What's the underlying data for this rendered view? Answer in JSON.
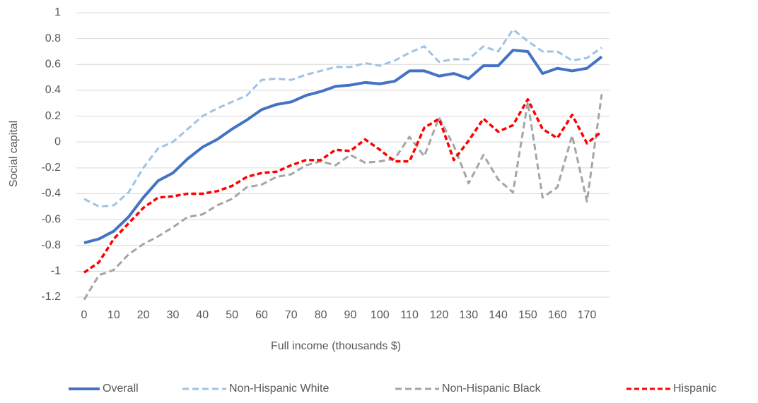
{
  "chart_data": {
    "type": "line",
    "x_label": "Full income (thousands $)",
    "y_label": "Social capital",
    "x": [
      0,
      5,
      10,
      15,
      20,
      25,
      30,
      35,
      40,
      45,
      50,
      55,
      60,
      65,
      70,
      75,
      80,
      85,
      90,
      95,
      100,
      105,
      110,
      115,
      120,
      125,
      130,
      135,
      140,
      145,
      150,
      155,
      160,
      165,
      170,
      175
    ],
    "xlim": [
      0,
      175
    ],
    "xticks": [
      0,
      10,
      20,
      30,
      40,
      50,
      60,
      70,
      80,
      90,
      100,
      110,
      120,
      130,
      140,
      150,
      160,
      170
    ],
    "ylim": [
      -1.2,
      1
    ],
    "yticks": [
      -1.2,
      -1,
      -0.8,
      -0.6,
      -0.4,
      -0.2,
      0,
      0.2,
      0.4,
      0.6,
      0.8,
      1
    ],
    "grid": true,
    "legend": "bottom",
    "series": [
      {
        "name": "Overall",
        "color": "#4472c4",
        "dashed": false,
        "values": [
          -0.78,
          -0.75,
          -0.69,
          -0.58,
          -0.43,
          -0.3,
          -0.24,
          -0.13,
          -0.04,
          0.02,
          0.1,
          0.17,
          0.25,
          0.29,
          0.31,
          0.36,
          0.39,
          0.43,
          0.44,
          0.46,
          0.45,
          0.47,
          0.55,
          0.55,
          0.51,
          0.53,
          0.49,
          0.59,
          0.59,
          0.71,
          0.7,
          0.53,
          0.57,
          0.55,
          0.57,
          0.66
        ]
      },
      {
        "name": "Non-Hispanic White",
        "color": "#9dc3e6",
        "dashed": true,
        "values": [
          -0.44,
          -0.5,
          -0.49,
          -0.39,
          -0.2,
          -0.05,
          0.0,
          0.1,
          0.2,
          0.26,
          0.31,
          0.36,
          0.48,
          0.49,
          0.48,
          0.52,
          0.55,
          0.58,
          0.58,
          0.61,
          0.59,
          0.63,
          0.69,
          0.74,
          0.62,
          0.64,
          0.64,
          0.74,
          0.7,
          0.87,
          0.78,
          0.7,
          0.7,
          0.63,
          0.65,
          0.73
        ]
      },
      {
        "name": "Non-Hispanic Black",
        "color": "#a5a5a5",
        "dashed": true,
        "values": [
          -1.22,
          -1.03,
          -0.99,
          -0.87,
          -0.79,
          -0.73,
          -0.66,
          -0.58,
          -0.56,
          -0.49,
          -0.44,
          -0.35,
          -0.33,
          -0.27,
          -0.25,
          -0.18,
          -0.15,
          -0.18,
          -0.1,
          -0.16,
          -0.15,
          -0.13,
          0.04,
          -0.11,
          0.19,
          -0.03,
          -0.32,
          -0.1,
          -0.29,
          -0.39,
          0.31,
          -0.43,
          -0.35,
          0.05,
          -0.46,
          0.37
        ]
      },
      {
        "name": "Hispanic",
        "color": "#ff0000",
        "dashed": true,
        "values": [
          -1.01,
          -0.93,
          -0.75,
          -0.63,
          -0.51,
          -0.43,
          -0.42,
          -0.4,
          -0.4,
          -0.38,
          -0.34,
          -0.27,
          -0.24,
          -0.23,
          -0.18,
          -0.14,
          -0.14,
          -0.06,
          -0.07,
          0.02,
          -0.06,
          -0.15,
          -0.15,
          0.11,
          0.18,
          -0.14,
          0.01,
          0.18,
          0.08,
          0.13,
          0.33,
          0.1,
          0.03,
          0.21,
          -0.01,
          0.08
        ]
      }
    ]
  }
}
